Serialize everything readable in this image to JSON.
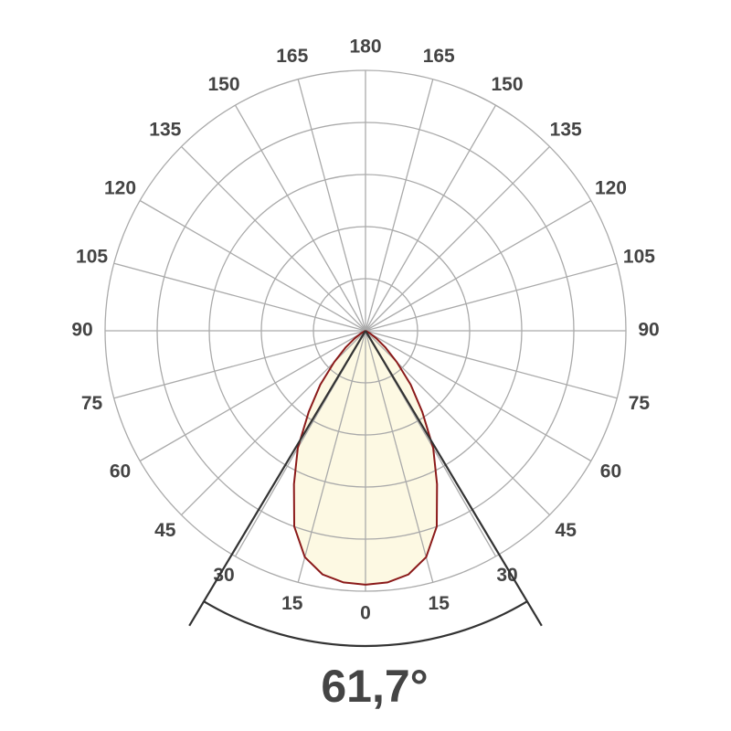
{
  "chart_data": {
    "type": "polar",
    "symmetric": true,
    "angles": [
      0,
      5,
      10,
      15,
      20,
      25,
      30,
      35,
      40,
      45,
      50,
      55,
      60,
      65,
      70,
      75,
      80,
      85,
      90
    ],
    "values": [
      97.5,
      97,
      95,
      90,
      80,
      65,
      52,
      38,
      27,
      17,
      10,
      5,
      2,
      0.5,
      0,
      0,
      0,
      0,
      0
    ],
    "color": "#8b1a1a",
    "fill": "#fdf9e3",
    "rlim": [
      0,
      100
    ],
    "rticks": [
      20,
      40,
      60,
      80,
      100
    ],
    "angle_ticks": [
      0,
      15,
      30,
      45,
      60,
      75,
      90,
      105,
      120,
      135,
      150,
      165,
      180
    ],
    "grid": true,
    "beam_angle": 61.7,
    "beam_angle_label": "61,7°"
  }
}
